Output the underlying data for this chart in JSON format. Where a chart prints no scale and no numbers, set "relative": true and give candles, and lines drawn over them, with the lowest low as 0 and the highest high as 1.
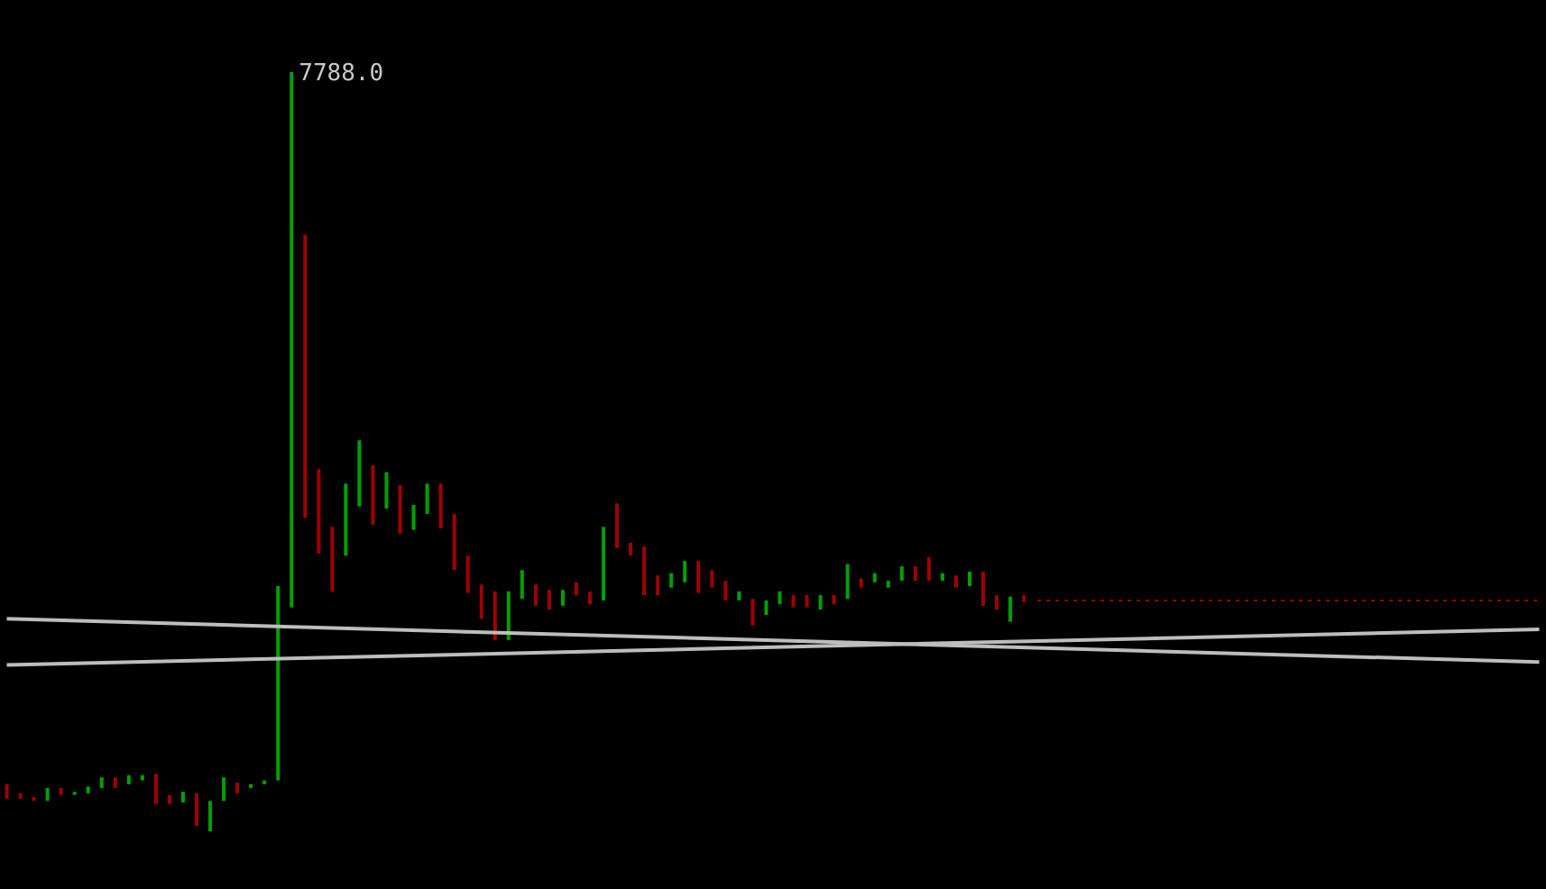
{
  "chart_data": {
    "type": "candlestick",
    "relative": true,
    "grid": false,
    "legend": false,
    "tick_labels": false,
    "categories": [
      null,
      null,
      null,
      null,
      null,
      null,
      null,
      null,
      null,
      null,
      null,
      null,
      null,
      null,
      null,
      null,
      null,
      null,
      null,
      null,
      null,
      null,
      null,
      null,
      null,
      null,
      null,
      null,
      null,
      null,
      null,
      null,
      null,
      null,
      null,
      null,
      null,
      null,
      null,
      null,
      null,
      null,
      null,
      null,
      null,
      null,
      null,
      null,
      null,
      null,
      null,
      null,
      null,
      null,
      null,
      null,
      null,
      null,
      null,
      null,
      null,
      null,
      null,
      null,
      null,
      null,
      null,
      null,
      null,
      null,
      null,
      null,
      null,
      null,
      null,
      null,
      null,
      null,
      null,
      null,
      null,
      null,
      null,
      null,
      null,
      null,
      null,
      null,
      null,
      null,
      null,
      null,
      null,
      null,
      null,
      null,
      null,
      null,
      null,
      null,
      null,
      null,
      null,
      null,
      null,
      null,
      null,
      null,
      null,
      null,
      null,
      null,
      null,
      null
    ],
    "ohlc": [
      [
        0.062,
        0.062,
        0.043,
        0.043
      ],
      [
        0.05,
        0.05,
        0.043,
        0.043
      ],
      [
        0.045,
        0.045,
        0.04,
        0.04
      ],
      [
        0.04,
        0.057,
        0.04,
        0.057
      ],
      [
        0.057,
        0.057,
        0.048,
        0.048
      ],
      [
        0.048,
        0.052,
        0.048,
        0.052
      ],
      [
        0.05,
        0.059,
        0.05,
        0.059
      ],
      [
        0.057,
        0.071,
        0.057,
        0.071
      ],
      [
        0.071,
        0.071,
        0.057,
        0.057
      ],
      [
        0.062,
        0.074,
        0.062,
        0.074
      ],
      [
        0.067,
        0.074,
        0.067,
        0.074
      ],
      [
        0.076,
        0.076,
        0.036,
        0.036
      ],
      [
        0.048,
        0.048,
        0.036,
        0.036
      ],
      [
        0.038,
        0.052,
        0.038,
        0.052
      ],
      [
        0.05,
        0.05,
        0.007,
        0.007
      ],
      [
        0,
        0.04,
        0,
        0.04
      ],
      [
        0.04,
        0.071,
        0.04,
        0.071
      ],
      [
        0.064,
        0.064,
        0.05,
        0.05
      ],
      [
        0.057,
        0.062,
        0.057,
        0.062
      ],
      [
        0.062,
        0.067,
        0.062,
        0.067
      ],
      [
        0.067,
        0.323,
        0.067,
        0.323
      ],
      [
        0.295,
        1,
        0.295,
        1
      ],
      [
        0.786,
        0.786,
        0.413,
        0.413
      ],
      [
        0.477,
        0.477,
        0.366,
        0.366
      ],
      [
        0.401,
        0.401,
        0.316,
        0.316
      ],
      [
        0.363,
        0.458,
        0.363,
        0.458
      ],
      [
        0.428,
        0.515,
        0.428,
        0.515
      ],
      [
        0.482,
        0.482,
        0.404,
        0.404
      ],
      [
        0.425,
        0.473,
        0.425,
        0.473
      ],
      [
        0.456,
        0.456,
        0.392,
        0.392
      ],
      [
        0.397,
        0.43,
        0.397,
        0.43
      ],
      [
        0.418,
        0.458,
        0.418,
        0.458
      ],
      [
        0.458,
        0.458,
        0.399,
        0.399
      ],
      [
        0.418,
        0.418,
        0.344,
        0.344
      ],
      [
        0.363,
        0.363,
        0.314,
        0.314
      ],
      [
        0.325,
        0.325,
        0.28,
        0.28
      ],
      [
        0.316,
        0.316,
        0.252,
        0.252
      ],
      [
        0.252,
        0.316,
        0.252,
        0.316
      ],
      [
        0.306,
        0.344,
        0.306,
        0.344
      ],
      [
        0.325,
        0.325,
        0.297,
        0.297
      ],
      [
        0.318,
        0.318,
        0.292,
        0.292
      ],
      [
        0.297,
        0.318,
        0.297,
        0.318
      ],
      [
        0.328,
        0.328,
        0.311,
        0.311
      ],
      [
        0.316,
        0.316,
        0.299,
        0.299
      ],
      [
        0.304,
        0.401,
        0.304,
        0.401
      ],
      [
        0.432,
        0.432,
        0.373,
        0.373
      ],
      [
        0.38,
        0.38,
        0.363,
        0.363
      ],
      [
        0.375,
        0.375,
        0.311,
        0.311
      ],
      [
        0.337,
        0.337,
        0.311,
        0.311
      ],
      [
        0.321,
        0.34,
        0.321,
        0.34
      ],
      [
        0.328,
        0.356,
        0.328,
        0.356
      ],
      [
        0.356,
        0.356,
        0.314,
        0.314
      ],
      [
        0.344,
        0.344,
        0.321,
        0.321
      ],
      [
        0.33,
        0.33,
        0.304,
        0.304
      ],
      [
        0.304,
        0.316,
        0.304,
        0.316
      ],
      [
        0.306,
        0.306,
        0.271,
        0.271
      ],
      [
        0.285,
        0.304,
        0.285,
        0.304
      ],
      [
        0.299,
        0.316,
        0.299,
        0.316
      ],
      [
        0.311,
        0.311,
        0.295,
        0.295
      ],
      [
        0.311,
        0.311,
        0.295,
        0.295
      ],
      [
        0.292,
        0.311,
        0.292,
        0.311
      ],
      [
        0.311,
        0.311,
        0.299,
        0.299
      ],
      [
        0.306,
        0.352,
        0.306,
        0.352
      ],
      [
        0.333,
        0.333,
        0.321,
        0.321
      ],
      [
        0.328,
        0.34,
        0.328,
        0.34
      ],
      [
        0.321,
        0.33,
        0.321,
        0.33
      ],
      [
        0.33,
        0.349,
        0.33,
        0.349
      ],
      [
        0.349,
        0.349,
        0.33,
        0.33
      ],
      [
        0.361,
        0.361,
        0.33,
        0.33
      ],
      [
        0.33,
        0.34,
        0.33,
        0.34
      ],
      [
        0.337,
        0.337,
        0.321,
        0.321
      ],
      [
        0.323,
        0.342,
        0.323,
        0.342
      ],
      [
        0.342,
        0.342,
        0.297,
        0.297
      ],
      [
        0.311,
        0.311,
        0.292,
        0.292
      ],
      [
        0.276,
        0.309,
        0.276,
        0.309
      ],
      [
        0.311,
        0.311,
        0.302,
        0.302
      ],
      null,
      null,
      null,
      null,
      null,
      null,
      null,
      null,
      null,
      null,
      null,
      null,
      null,
      null,
      null,
      null,
      null,
      null,
      null,
      null,
      null,
      null,
      null,
      null,
      null,
      null,
      null,
      null,
      null,
      null,
      null,
      null,
      null,
      null,
      null,
      null,
      null,
      null
    ],
    "colors": [
      "#a00000",
      "#a00000",
      "#a00000",
      "#00a000",
      "#a00000",
      "#00a000",
      "#00a000",
      "#00a000",
      "#a00000",
      "#00a000",
      "#00a000",
      "#a00000",
      "#a00000",
      "#00a000",
      "#a00000",
      "#00a000",
      "#00a000",
      "#a00000",
      "#00a000",
      "#00a000",
      "#00a000",
      "#00a000",
      "#a00000",
      "#a00000",
      "#a00000",
      "#00a000",
      "#00a000",
      "#a00000",
      "#00a000",
      "#a00000",
      "#00a000",
      "#00a000",
      "#a00000",
      "#a00000",
      "#a00000",
      "#a00000",
      "#a00000",
      "#00a000",
      "#00a000",
      "#a00000",
      "#a00000",
      "#00a000",
      "#a00000",
      "#a00000",
      "#00a000",
      "#a00000",
      "#a00000",
      "#a00000",
      "#a00000",
      "#00a000",
      "#00a000",
      "#a00000",
      "#a00000",
      "#a00000",
      "#00a000",
      "#a00000",
      "#00a000",
      "#00a000",
      "#a00000",
      "#a00000",
      "#00a000",
      "#a00000",
      "#00a000",
      "#a00000",
      "#00a000",
      "#00a000",
      "#00a000",
      "#a00000",
      "#a00000",
      "#00a000",
      "#a00000",
      "#00a000",
      "#a00000",
      "#a00000",
      "#00a000",
      "#a00000",
      null,
      null,
      null,
      null,
      null,
      null,
      null,
      null,
      null,
      null,
      null,
      null,
      null,
      null,
      null,
      null,
      null,
      null,
      null,
      null,
      null,
      null,
      null,
      null,
      null,
      null,
      null,
      null,
      null,
      null,
      null,
      null,
      null,
      null,
      null,
      null,
      null,
      null
    ],
    "series": [
      {
        "type": "line",
        "color": "#bdbdbd",
        "values": [
          0.28,
          null,
          null,
          null,
          null,
          null,
          null,
          null,
          null,
          null,
          null,
          null,
          null,
          null,
          null,
          null,
          null,
          null,
          null,
          null,
          null,
          null,
          null,
          null,
          null,
          null,
          null,
          null,
          null,
          null,
          null,
          null,
          null,
          null,
          null,
          null,
          null,
          null,
          null,
          null,
          null,
          null,
          null,
          null,
          null,
          null,
          null,
          null,
          null,
          null,
          null,
          null,
          null,
          null,
          null,
          null,
          null,
          null,
          null,
          null,
          null,
          null,
          null,
          null,
          null,
          null,
          null,
          null,
          null,
          null,
          null,
          null,
          null,
          null,
          null,
          null,
          null,
          null,
          null,
          null,
          null,
          null,
          null,
          null,
          null,
          null,
          null,
          null,
          null,
          null,
          null,
          null,
          null,
          null,
          null,
          null,
          null,
          null,
          null,
          null,
          null,
          null,
          null,
          null,
          null,
          null,
          null,
          null,
          null,
          null,
          null,
          null,
          null,
          0.223
        ]
      },
      {
        "type": "line",
        "color": "#bdbdbd",
        "values": [
          0.219,
          null,
          null,
          null,
          null,
          null,
          null,
          null,
          null,
          null,
          null,
          null,
          null,
          null,
          null,
          null,
          null,
          null,
          null,
          null,
          null,
          null,
          null,
          null,
          null,
          null,
          null,
          null,
          null,
          null,
          null,
          null,
          null,
          null,
          null,
          null,
          null,
          null,
          null,
          null,
          null,
          null,
          null,
          null,
          null,
          null,
          null,
          null,
          null,
          null,
          null,
          null,
          null,
          null,
          null,
          null,
          null,
          null,
          null,
          null,
          null,
          null,
          null,
          null,
          null,
          null,
          null,
          null,
          null,
          null,
          null,
          null,
          null,
          null,
          null,
          null,
          null,
          null,
          null,
          null,
          null,
          null,
          null,
          null,
          null,
          null,
          null,
          null,
          null,
          null,
          null,
          null,
          null,
          null,
          null,
          null,
          null,
          null,
          null,
          null,
          null,
          null,
          null,
          null,
          null,
          null,
          null,
          null,
          null,
          null,
          null,
          null,
          null,
          0.266
        ]
      }
    ],
    "ref_lines": [
      {
        "axis": "y",
        "value": 0.304,
        "color": "#a00000",
        "line_style": "dotted"
      }
    ],
    "annotations": [
      "7788.0"
    ]
  }
}
